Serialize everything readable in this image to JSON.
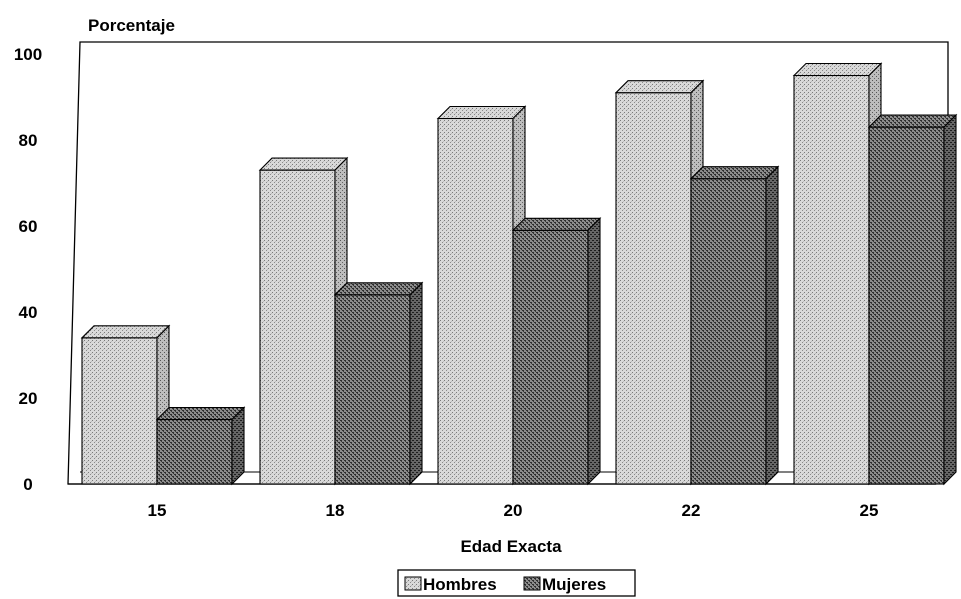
{
  "chart_data": {
    "type": "bar",
    "ylabel": "Porcentaje",
    "xlabel": "Edad Exacta",
    "ylim": [
      0,
      100
    ],
    "yticks": [
      0,
      20,
      40,
      60,
      80,
      100
    ],
    "categories": [
      "15",
      "18",
      "20",
      "22",
      "25"
    ],
    "series": [
      {
        "name": "Hombres",
        "values": [
          34,
          73,
          85,
          91,
          95
        ],
        "color": "#c8c8c8",
        "pattern": "fine-dots"
      },
      {
        "name": "Mujeres",
        "values": [
          15,
          44,
          59,
          71,
          83
        ],
        "color": "#6e6e6e",
        "pattern": "dense-crosshatch"
      }
    ],
    "legend_position": "bottom-center",
    "style": "3d-bars"
  }
}
